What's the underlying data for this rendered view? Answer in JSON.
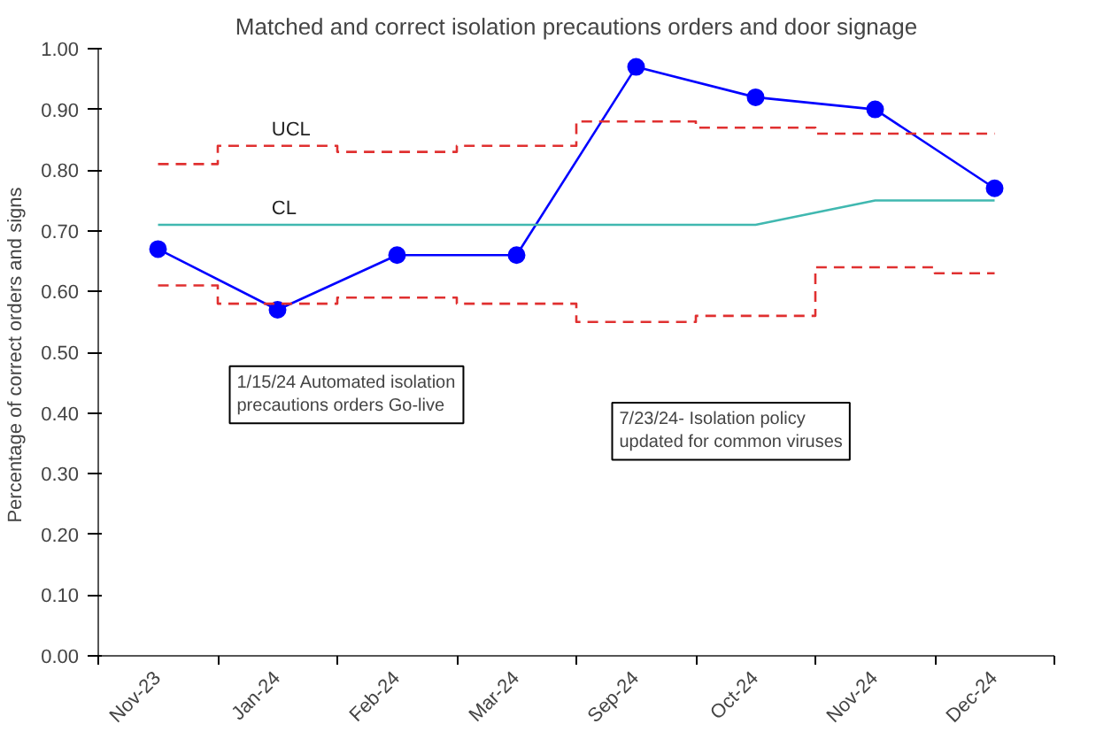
{
  "chart_data": {
    "type": "line",
    "title": "Matched and correct isolation precautions orders and door signage",
    "ylabel": "Percentage of correct orders  and signs",
    "categories": [
      "Nov-23",
      "Jan-24",
      "Feb-24",
      "Mar-24",
      "Sep-24",
      "Oct-24",
      "Nov-24",
      "Dec-24"
    ],
    "series": [
      {
        "color": "#0000ff",
        "marker": "circle",
        "values": [
          0.67,
          0.57,
          0.66,
          0.66,
          0.97,
          0.92,
          0.9,
          0.77
        ]
      },
      {
        "type": "step",
        "name": "UCL",
        "color": "#e03030",
        "line_style": "dashed",
        "values": [
          0.81,
          0.84,
          0.83,
          0.84,
          0.88,
          0.87,
          0.86,
          0.86
        ]
      },
      {
        "name": "CL",
        "color": "#40b8b0",
        "values": [
          0.71,
          0.71,
          0.71,
          0.71,
          0.71,
          0.71,
          0.75,
          0.75
        ]
      },
      {
        "type": "step",
        "color": "#e03030",
        "line_style": "dashed",
        "values": [
          0.61,
          0.58,
          0.59,
          0.58,
          0.55,
          0.56,
          0.64,
          0.63
        ]
      }
    ],
    "ylim": [
      0,
      1
    ],
    "yticks": [
      {
        "value": 0,
        "label": "0.00"
      },
      {
        "value": 0.1,
        "label": "0.10"
      },
      {
        "value": 0.2,
        "label": "0.20"
      },
      {
        "value": 0.3,
        "label": "0.30"
      },
      {
        "value": 0.4,
        "label": "0.40"
      },
      {
        "value": 0.5,
        "label": "0.50"
      },
      {
        "value": 0.6,
        "label": "0.60"
      },
      {
        "value": 0.7,
        "label": "0.70"
      },
      {
        "value": 0.8,
        "label": "0.80"
      },
      {
        "value": 0.9,
        "label": "0.90"
      },
      {
        "value": 1.0,
        "label": "1.00"
      }
    ],
    "annotations": [
      "1/15/24 Automated isolation\nprecautions orders Go-live",
      "7/23/24- Isolation policy\nupdated for common viruses"
    ],
    "grid": false
  }
}
